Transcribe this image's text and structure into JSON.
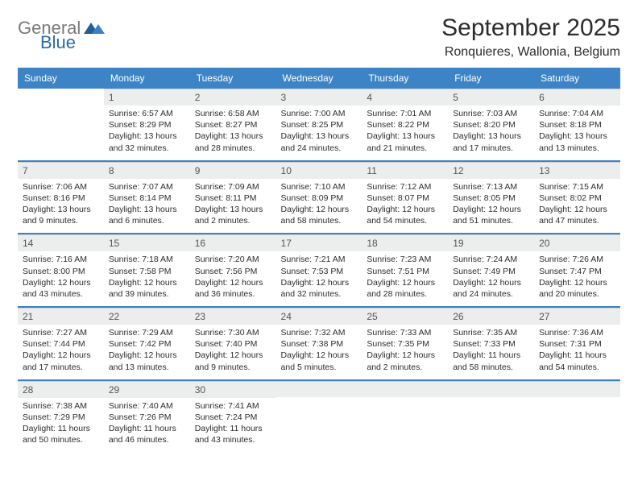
{
  "logo": {
    "word1": "General",
    "word2": "Blue"
  },
  "title": "September 2025",
  "location": "Ronquieres, Wallonia, Belgium",
  "colors": {
    "header_bg": "#3c84c6",
    "header_text": "#ffffff",
    "daynum_bg": "#eceded",
    "week_separator": "#3c84c6",
    "logo_gray": "#7a7a7a",
    "logo_blue": "#2b6aa8",
    "page_bg": "#ffffff",
    "body_text": "#2c2c2c"
  },
  "typography": {
    "title_fontsize": 30,
    "location_fontsize": 16,
    "dayheader_fontsize": 12,
    "cell_fontsize": 10.5
  },
  "day_headers": [
    "Sunday",
    "Monday",
    "Tuesday",
    "Wednesday",
    "Thursday",
    "Friday",
    "Saturday"
  ],
  "weeks": [
    [
      {
        "num": "",
        "sunrise": "",
        "sunset": "",
        "daylight": ""
      },
      {
        "num": "1",
        "sunrise": "Sunrise: 6:57 AM",
        "sunset": "Sunset: 8:29 PM",
        "daylight": "Daylight: 13 hours and 32 minutes."
      },
      {
        "num": "2",
        "sunrise": "Sunrise: 6:58 AM",
        "sunset": "Sunset: 8:27 PM",
        "daylight": "Daylight: 13 hours and 28 minutes."
      },
      {
        "num": "3",
        "sunrise": "Sunrise: 7:00 AM",
        "sunset": "Sunset: 8:25 PM",
        "daylight": "Daylight: 13 hours and 24 minutes."
      },
      {
        "num": "4",
        "sunrise": "Sunrise: 7:01 AM",
        "sunset": "Sunset: 8:22 PM",
        "daylight": "Daylight: 13 hours and 21 minutes."
      },
      {
        "num": "5",
        "sunrise": "Sunrise: 7:03 AM",
        "sunset": "Sunset: 8:20 PM",
        "daylight": "Daylight: 13 hours and 17 minutes."
      },
      {
        "num": "6",
        "sunrise": "Sunrise: 7:04 AM",
        "sunset": "Sunset: 8:18 PM",
        "daylight": "Daylight: 13 hours and 13 minutes."
      }
    ],
    [
      {
        "num": "7",
        "sunrise": "Sunrise: 7:06 AM",
        "sunset": "Sunset: 8:16 PM",
        "daylight": "Daylight: 13 hours and 9 minutes."
      },
      {
        "num": "8",
        "sunrise": "Sunrise: 7:07 AM",
        "sunset": "Sunset: 8:14 PM",
        "daylight": "Daylight: 13 hours and 6 minutes."
      },
      {
        "num": "9",
        "sunrise": "Sunrise: 7:09 AM",
        "sunset": "Sunset: 8:11 PM",
        "daylight": "Daylight: 13 hours and 2 minutes."
      },
      {
        "num": "10",
        "sunrise": "Sunrise: 7:10 AM",
        "sunset": "Sunset: 8:09 PM",
        "daylight": "Daylight: 12 hours and 58 minutes."
      },
      {
        "num": "11",
        "sunrise": "Sunrise: 7:12 AM",
        "sunset": "Sunset: 8:07 PM",
        "daylight": "Daylight: 12 hours and 54 minutes."
      },
      {
        "num": "12",
        "sunrise": "Sunrise: 7:13 AM",
        "sunset": "Sunset: 8:05 PM",
        "daylight": "Daylight: 12 hours and 51 minutes."
      },
      {
        "num": "13",
        "sunrise": "Sunrise: 7:15 AM",
        "sunset": "Sunset: 8:02 PM",
        "daylight": "Daylight: 12 hours and 47 minutes."
      }
    ],
    [
      {
        "num": "14",
        "sunrise": "Sunrise: 7:16 AM",
        "sunset": "Sunset: 8:00 PM",
        "daylight": "Daylight: 12 hours and 43 minutes."
      },
      {
        "num": "15",
        "sunrise": "Sunrise: 7:18 AM",
        "sunset": "Sunset: 7:58 PM",
        "daylight": "Daylight: 12 hours and 39 minutes."
      },
      {
        "num": "16",
        "sunrise": "Sunrise: 7:20 AM",
        "sunset": "Sunset: 7:56 PM",
        "daylight": "Daylight: 12 hours and 36 minutes."
      },
      {
        "num": "17",
        "sunrise": "Sunrise: 7:21 AM",
        "sunset": "Sunset: 7:53 PM",
        "daylight": "Daylight: 12 hours and 32 minutes."
      },
      {
        "num": "18",
        "sunrise": "Sunrise: 7:23 AM",
        "sunset": "Sunset: 7:51 PM",
        "daylight": "Daylight: 12 hours and 28 minutes."
      },
      {
        "num": "19",
        "sunrise": "Sunrise: 7:24 AM",
        "sunset": "Sunset: 7:49 PM",
        "daylight": "Daylight: 12 hours and 24 minutes."
      },
      {
        "num": "20",
        "sunrise": "Sunrise: 7:26 AM",
        "sunset": "Sunset: 7:47 PM",
        "daylight": "Daylight: 12 hours and 20 minutes."
      }
    ],
    [
      {
        "num": "21",
        "sunrise": "Sunrise: 7:27 AM",
        "sunset": "Sunset: 7:44 PM",
        "daylight": "Daylight: 12 hours and 17 minutes."
      },
      {
        "num": "22",
        "sunrise": "Sunrise: 7:29 AM",
        "sunset": "Sunset: 7:42 PM",
        "daylight": "Daylight: 12 hours and 13 minutes."
      },
      {
        "num": "23",
        "sunrise": "Sunrise: 7:30 AM",
        "sunset": "Sunset: 7:40 PM",
        "daylight": "Daylight: 12 hours and 9 minutes."
      },
      {
        "num": "24",
        "sunrise": "Sunrise: 7:32 AM",
        "sunset": "Sunset: 7:38 PM",
        "daylight": "Daylight: 12 hours and 5 minutes."
      },
      {
        "num": "25",
        "sunrise": "Sunrise: 7:33 AM",
        "sunset": "Sunset: 7:35 PM",
        "daylight": "Daylight: 12 hours and 2 minutes."
      },
      {
        "num": "26",
        "sunrise": "Sunrise: 7:35 AM",
        "sunset": "Sunset: 7:33 PM",
        "daylight": "Daylight: 11 hours and 58 minutes."
      },
      {
        "num": "27",
        "sunrise": "Sunrise: 7:36 AM",
        "sunset": "Sunset: 7:31 PM",
        "daylight": "Daylight: 11 hours and 54 minutes."
      }
    ],
    [
      {
        "num": "28",
        "sunrise": "Sunrise: 7:38 AM",
        "sunset": "Sunset: 7:29 PM",
        "daylight": "Daylight: 11 hours and 50 minutes."
      },
      {
        "num": "29",
        "sunrise": "Sunrise: 7:40 AM",
        "sunset": "Sunset: 7:26 PM",
        "daylight": "Daylight: 11 hours and 46 minutes."
      },
      {
        "num": "30",
        "sunrise": "Sunrise: 7:41 AM",
        "sunset": "Sunset: 7:24 PM",
        "daylight": "Daylight: 11 hours and 43 minutes."
      },
      {
        "num": "",
        "sunrise": "",
        "sunset": "",
        "daylight": ""
      },
      {
        "num": "",
        "sunrise": "",
        "sunset": "",
        "daylight": ""
      },
      {
        "num": "",
        "sunrise": "",
        "sunset": "",
        "daylight": ""
      },
      {
        "num": "",
        "sunrise": "",
        "sunset": "",
        "daylight": ""
      }
    ]
  ]
}
